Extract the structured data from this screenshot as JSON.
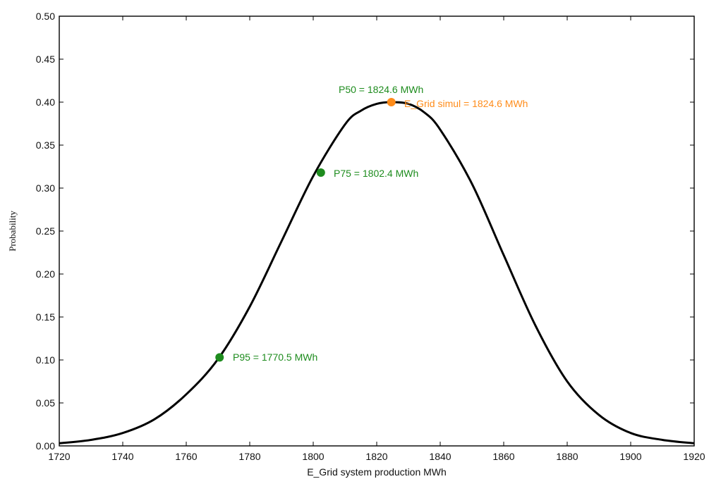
{
  "chart_data": {
    "type": "line",
    "title": "",
    "xlabel": "E_Grid system production MWh",
    "ylabel": "Probability",
    "xlim": [
      1720,
      1920
    ],
    "ylim": [
      0,
      0.5
    ],
    "x_ticks": [
      "1720",
      "1740",
      "1760",
      "1780",
      "1800",
      "1820",
      "1840",
      "1860",
      "1880",
      "1900",
      "1920"
    ],
    "y_ticks": [
      "0.00",
      "0.05",
      "0.10",
      "0.15",
      "0.20",
      "0.25",
      "0.30",
      "0.35",
      "0.40",
      "0.45",
      "0.50"
    ],
    "grid": false,
    "series": [
      {
        "color": "#000000",
        "x": [
          1720,
          1730,
          1740,
          1750,
          1760,
          1770,
          1780,
          1790,
          1800,
          1810,
          1815,
          1820,
          1824.6,
          1830,
          1835,
          1840,
          1850,
          1860,
          1870,
          1880,
          1890,
          1900,
          1910,
          1920
        ],
        "y": [
          0.003,
          0.007,
          0.015,
          0.031,
          0.06,
          0.101,
          0.162,
          0.238,
          0.314,
          0.374,
          0.39,
          0.398,
          0.4,
          0.398,
          0.388,
          0.368,
          0.305,
          0.222,
          0.14,
          0.075,
          0.036,
          0.015,
          0.007,
          0.003
        ]
      }
    ],
    "markers": [
      {
        "label": "P50 = 1824.6 MWh",
        "x": 1824.6,
        "y": 0.4,
        "color": "#ff8c1a",
        "label_color": "#1e8c1e"
      },
      {
        "label": "E_Grid simul = 1824.6 MWh",
        "x": 1824.6,
        "y": 0.4,
        "color": "#ff8c1a",
        "label_color": "#ff8c1a"
      },
      {
        "label": "P75 = 1802.4 MWh",
        "x": 1802.4,
        "y": 0.318,
        "color": "#1e8c1e",
        "label_color": "#1e8c1e"
      },
      {
        "label": "P95 = 1770.5 MWh",
        "x": 1770.5,
        "y": 0.103,
        "color": "#1e8c1e",
        "label_color": "#1e8c1e"
      }
    ]
  }
}
